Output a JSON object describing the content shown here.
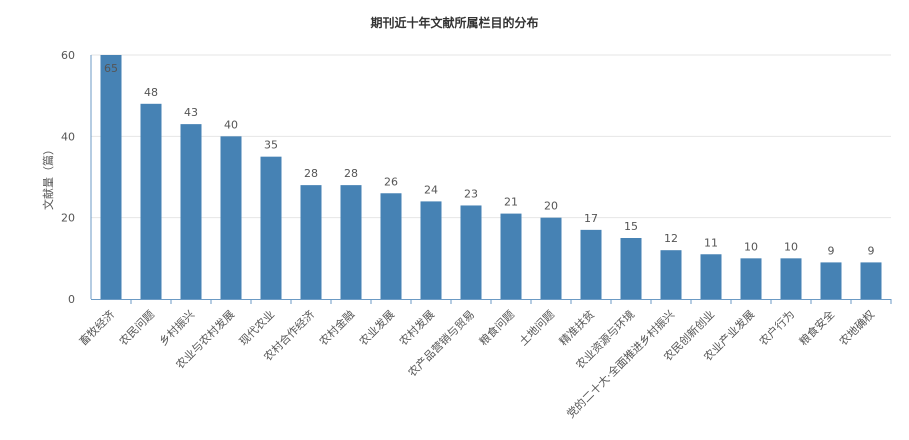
{
  "chart_data": {
    "type": "bar",
    "title": "期刊近十年文献所属栏目的分布",
    "xlabel": "",
    "ylabel": "文献量（篇）",
    "ylim": [
      0,
      60
    ],
    "yticks": [
      0,
      20,
      40,
      60
    ],
    "grid": true,
    "legend": "none",
    "colors": {
      "bar": "#4682b4",
      "grid": "#e6e6e6",
      "axis": "#6b9ac4"
    },
    "categories": [
      "畜牧经济",
      "农民问题",
      "乡村振兴",
      "农业与农村发展",
      "现代农业",
      "农村合作经济",
      "农村金融",
      "农业发展",
      "农村发展",
      "农产品营销与贸易",
      "粮食问题",
      "土地问题",
      "精准扶贫",
      "农业资源与环境",
      "党的二十大·全面推进乡村振兴",
      "农民创新创业",
      "农业产业发展",
      "农户行为",
      "粮食安全",
      "农地确权"
    ],
    "values": [
      65,
      48,
      43,
      40,
      35,
      28,
      28,
      26,
      24,
      23,
      21,
      20,
      17,
      15,
      12,
      11,
      10,
      10,
      9,
      9
    ]
  }
}
